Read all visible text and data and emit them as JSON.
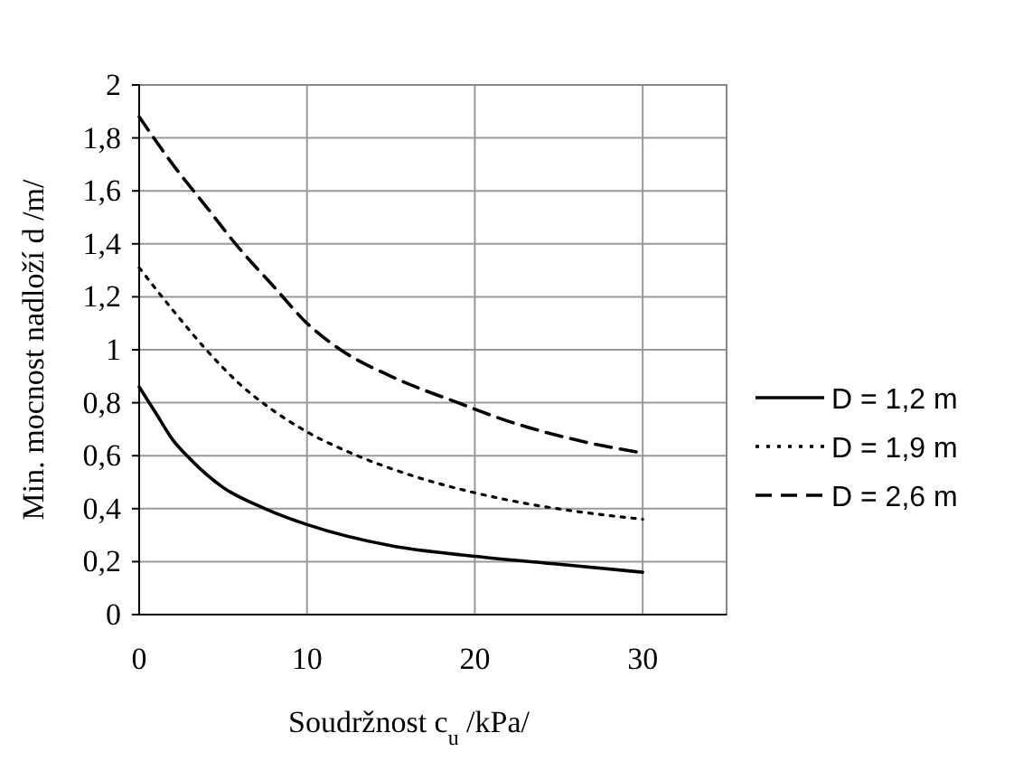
{
  "chart_data": {
    "type": "line",
    "xlabel": "Soudržnost c$_{u}$ /kPa/",
    "ylabel": "Min. mocnost nadloží d /m/",
    "xlim": [
      0,
      35
    ],
    "xticks": [
      0,
      10,
      20,
      30
    ],
    "ylim": [
      0,
      2
    ],
    "yticks": [
      0,
      {
        "value": 0.2,
        "label": "0,2"
      },
      {
        "value": 0.4,
        "label": "0,4"
      },
      {
        "value": 0.6,
        "label": "0,6"
      },
      {
        "value": 0.8,
        "label": "0,8"
      },
      1,
      {
        "value": 1.2,
        "label": "1,2"
      },
      {
        "value": 1.4,
        "label": "1,4"
      },
      {
        "value": 1.6,
        "label": "1,6"
      },
      {
        "value": 1.8,
        "label": "1,8"
      },
      2
    ],
    "grid": true,
    "legend": "right",
    "series": [
      {
        "name": "D = 1,2 m",
        "color": "#000000",
        "line_style": "solid",
        "x": [
          0,
          1,
          2,
          3,
          5,
          7.5,
          10,
          15,
          20,
          25,
          30
        ],
        "values": [
          0.86,
          0.76,
          0.66,
          0.59,
          0.48,
          0.4,
          0.34,
          0.26,
          0.22,
          0.19,
          0.16
        ]
      },
      {
        "name": "D = 1,9 m",
        "color": "#000000",
        "line_style": "dotted",
        "x": [
          0,
          2,
          4,
          6,
          8,
          10,
          13,
          16,
          20,
          23,
          26,
          30
        ],
        "values": [
          1.31,
          1.15,
          1.0,
          0.87,
          0.77,
          0.69,
          0.6,
          0.53,
          0.46,
          0.42,
          0.39,
          0.36
        ]
      },
      {
        "name": "D = 2,6 m",
        "color": "#000000",
        "line_style": "dashed",
        "x": [
          0,
          2,
          4,
          6,
          8,
          10,
          12,
          15,
          19,
          22,
          26,
          30
        ],
        "values": [
          1.88,
          1.7,
          1.54,
          1.38,
          1.24,
          1.1,
          1.0,
          0.9,
          0.8,
          0.73,
          0.66,
          0.61
        ]
      }
    ]
  }
}
